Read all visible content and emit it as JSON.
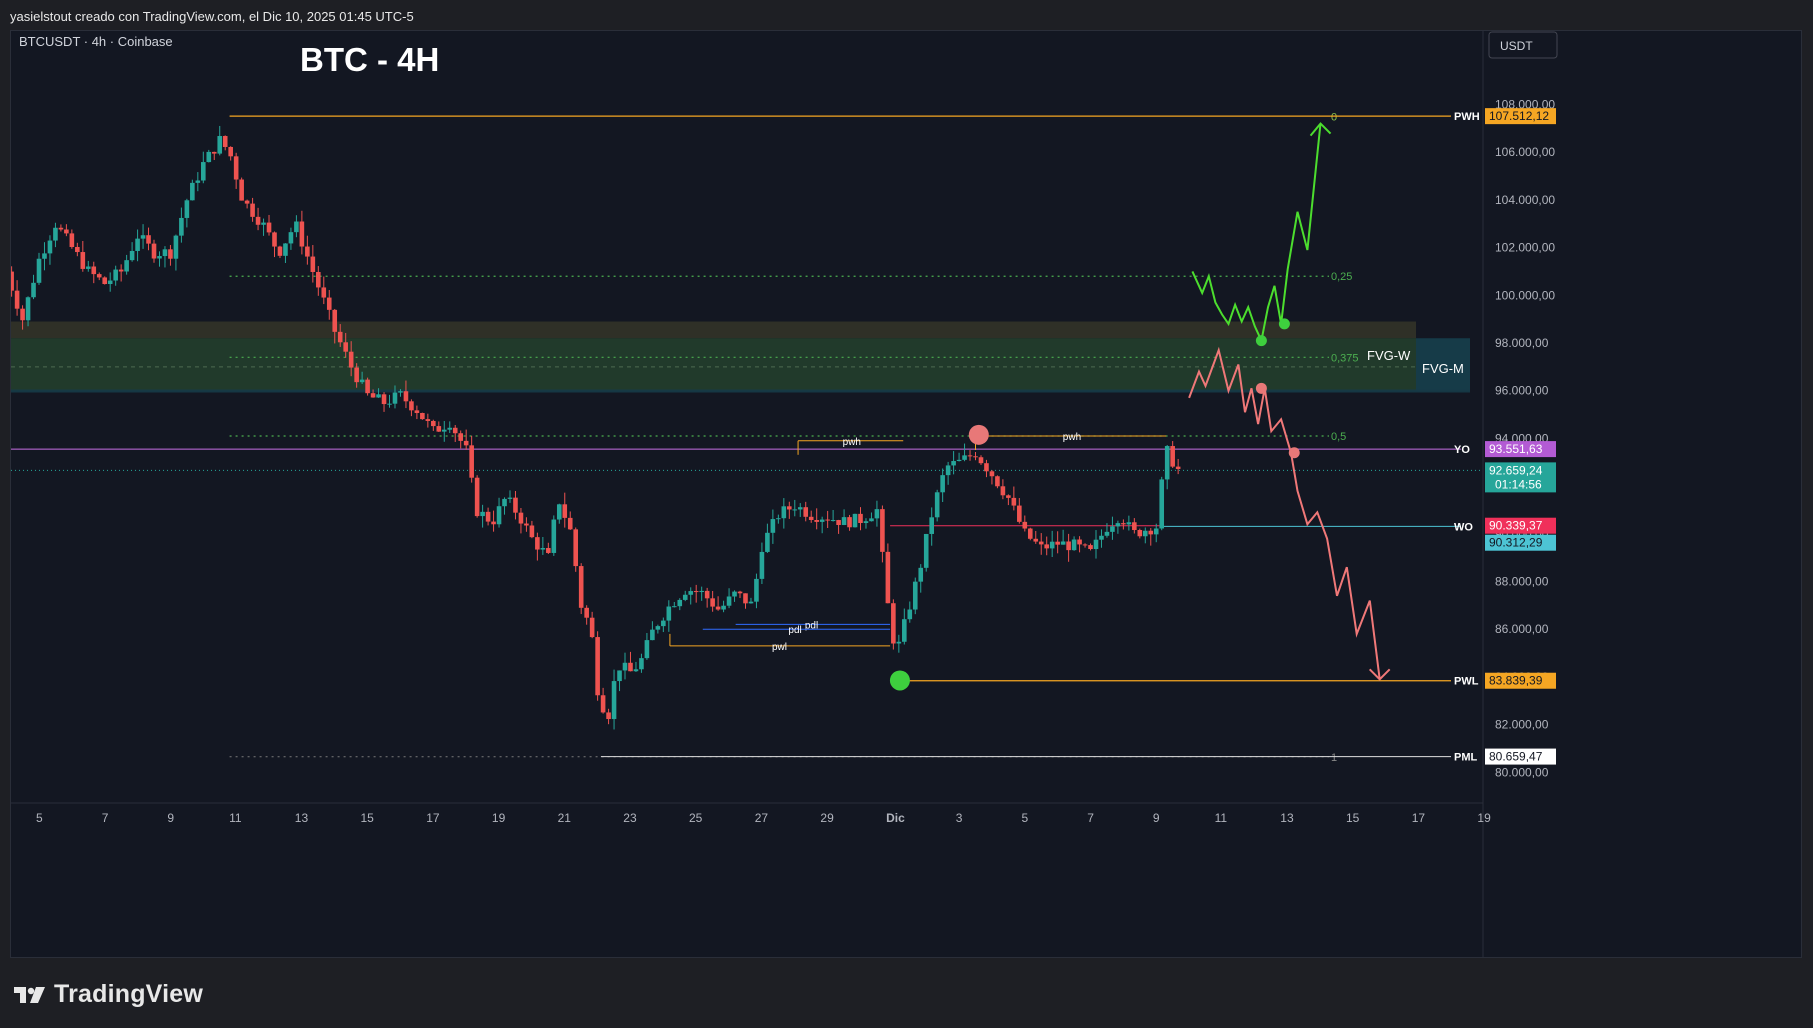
{
  "header": {
    "credit": "yasielstout creado con TradingView.com, el Dic 10, 2025 01:45 UTC-5"
  },
  "footer": {
    "brand": "TradingView"
  },
  "colors": {
    "up": "#26a69a",
    "down": "#ef5350",
    "orange": "#f5a623",
    "green_projection": "#4cde2e",
    "red_projection": "#f07878",
    "fvg_m": "#163b48",
    "fvg_w": "#25412d",
    "fvg_top": "#3a3a2a"
  },
  "chart_data": {
    "type": "candlestick",
    "symbol_line": "BTCUSDT · 4h · Coinbase",
    "title": "BTC - 4H",
    "currency": "USDT",
    "ylim": [
      78500,
      109000
    ],
    "y_ticks": [
      "108.000,00",
      "106.000,00",
      "104.000,00",
      "102.000,00",
      "100.000,00",
      "98.000,00",
      "96.000,00",
      "94.000,00",
      "92.000,00",
      "90.000,00",
      "88.000,00",
      "86.000,00",
      "84.000,00",
      "82.000,00",
      "80.000,00"
    ],
    "y_tick_values": [
      108000,
      106000,
      104000,
      102000,
      100000,
      98000,
      96000,
      94000,
      92000,
      90000,
      88000,
      86000,
      84000,
      82000,
      80000
    ],
    "x_ticks": [
      "5",
      "7",
      "9",
      "11",
      "13",
      "15",
      "17",
      "19",
      "21",
      "23",
      "25",
      "27",
      "29",
      "Dic",
      "3",
      "5",
      "7",
      "9",
      "11",
      "13",
      "15",
      "17",
      "19"
    ],
    "x_range_days": [
      4,
      35
    ],
    "price_path": [
      [
        4.0,
        101000
      ],
      [
        4.5,
        99000
      ],
      [
        5.0,
        101500
      ],
      [
        5.5,
        103000
      ],
      [
        6.0,
        102000
      ],
      [
        6.5,
        101000
      ],
      [
        7.0,
        100500
      ],
      [
        7.5,
        101000
      ],
      [
        8.0,
        102500
      ],
      [
        8.5,
        101800
      ],
      [
        9.0,
        101800
      ],
      [
        9.5,
        104000
      ],
      [
        10.0,
        105500
      ],
      [
        10.5,
        106500
      ],
      [
        10.8,
        106000
      ],
      [
        11.2,
        104000
      ],
      [
        11.8,
        103000
      ],
      [
        12.3,
        101800
      ],
      [
        12.8,
        103000
      ],
      [
        13.2,
        101500
      ],
      [
        13.6,
        100000
      ],
      [
        14.0,
        98500
      ],
      [
        14.5,
        97000
      ],
      [
        15.0,
        95800
      ],
      [
        15.5,
        95500
      ],
      [
        16.0,
        95800
      ],
      [
        16.5,
        95200
      ],
      [
        17.0,
        94300
      ],
      [
        17.5,
        94700
      ],
      [
        18.0,
        93500
      ],
      [
        18.3,
        91000
      ],
      [
        18.8,
        90500
      ],
      [
        19.2,
        91500
      ],
      [
        19.6,
        90800
      ],
      [
        20.0,
        89800
      ],
      [
        20.5,
        89000
      ],
      [
        20.8,
        91500
      ],
      [
        21.2,
        90000
      ],
      [
        21.5,
        87000
      ],
      [
        21.8,
        86000
      ],
      [
        22.0,
        83500
      ],
      [
        22.3,
        82200
      ],
      [
        22.6,
        84500
      ],
      [
        23.0,
        84200
      ],
      [
        23.3,
        84600
      ],
      [
        23.7,
        86000
      ],
      [
        24.2,
        87000
      ],
      [
        24.7,
        87700
      ],
      [
        25.2,
        87500
      ],
      [
        25.7,
        86800
      ],
      [
        26.2,
        87500
      ],
      [
        26.7,
        87000
      ],
      [
        27.0,
        89500
      ],
      [
        27.5,
        90800
      ],
      [
        28.0,
        91200
      ],
      [
        28.5,
        90800
      ],
      [
        29.0,
        90700
      ],
      [
        29.5,
        90500
      ],
      [
        30.0,
        90600
      ],
      [
        30.5,
        91000
      ],
      [
        30.9,
        86200
      ],
      [
        31.1,
        85000
      ],
      [
        31.4,
        86500
      ],
      [
        31.8,
        88500
      ],
      [
        32.2,
        91000
      ],
      [
        32.6,
        92800
      ],
      [
        33.0,
        93000
      ],
      [
        33.5,
        93400
      ],
      [
        34.0,
        92500
      ],
      [
        34.5,
        91500
      ],
      [
        35.0,
        90000
      ],
      [
        35.5,
        89400
      ],
      [
        36.0,
        89600
      ],
      [
        36.5,
        89500
      ],
      [
        37.0,
        89200
      ],
      [
        37.5,
        90300
      ],
      [
        37.9,
        90800
      ],
      [
        38.3,
        90000
      ],
      [
        38.7,
        90200
      ],
      [
        39.0,
        90300
      ],
      [
        39.3,
        93500
      ],
      [
        39.7,
        92600
      ]
    ],
    "levels": [
      {
        "name": "PWH",
        "value": 107512.12,
        "label": "107.512,12",
        "color": "#f5a623",
        "style": "solid",
        "from_day": 10.8
      },
      {
        "name": "YO",
        "value": 93551.63,
        "label": "93.551,63",
        "color": "#c770e6",
        "style": "solid",
        "from_day": 4.0
      },
      {
        "name": "WO",
        "value": 90312.29,
        "label": "90.312,29",
        "color": "#4dc4d4",
        "style": "solid",
        "from_day": 39.0
      },
      {
        "name": "PWL",
        "value": 83839.39,
        "label": "83.839,39",
        "color": "#f5a623",
        "style": "solid",
        "from_day": 31.2
      },
      {
        "name": "PML",
        "value": 80659.47,
        "label": "80.659,47",
        "color": "#e0e0e0",
        "style": "solid",
        "from_day": 22.1
      }
    ],
    "price_tags": [
      {
        "value": 90339.37,
        "label": "90.339,37",
        "color": "#f0305a"
      },
      {
        "value": 92659.24,
        "label": "92.659,24",
        "sublabel": "01:14:56",
        "color": "#26a69a"
      }
    ],
    "fib_levels": [
      {
        "label": "0",
        "value": 107500
      },
      {
        "label": "0,25",
        "value": 100800
      },
      {
        "label": "0,375",
        "value": 97400
      },
      {
        "label": "0,5",
        "value": 94100
      },
      {
        "label": "1",
        "value": 80650
      }
    ],
    "zones": [
      {
        "name": "FVG-W",
        "top": 98900,
        "bottom": 96000,
        "label": "FVG-W"
      },
      {
        "name": "FVG-M",
        "top": 98200,
        "bottom": 96000,
        "label": "FVG-M"
      }
    ],
    "small_levels": [
      {
        "label": "pwh",
        "value": 93900,
        "from_day": 28.1,
        "to_day": 31.3
      },
      {
        "label": "pwh",
        "value": 94100,
        "from_day": 33.5,
        "to_day": 39.3
      },
      {
        "label": "pwl",
        "value": 85300,
        "from_day": 24.2,
        "to_day": 30.9
      },
      {
        "label": "pdl",
        "value": 86200,
        "from_day": 26.2,
        "to_day": 30.9
      },
      {
        "label": "pdl",
        "value": 86000,
        "from_day": 25.2,
        "to_day": 30.9
      }
    ],
    "projection_bull": [
      [
        40.1,
        101000
      ],
      [
        40.4,
        100100
      ],
      [
        40.6,
        100800
      ],
      [
        40.8,
        99700
      ],
      [
        41.0,
        99200
      ],
      [
        41.2,
        98800
      ],
      [
        41.4,
        99600
      ],
      [
        41.6,
        98900
      ],
      [
        41.8,
        99500
      ],
      [
        42.0,
        98700
      ],
      [
        42.2,
        98100
      ],
      [
        42.4,
        99500
      ],
      [
        42.6,
        100400
      ],
      [
        42.8,
        98800
      ],
      [
        43.0,
        101100
      ],
      [
        43.3,
        103500
      ],
      [
        43.6,
        101900
      ],
      [
        44.0,
        107200
      ]
    ],
    "projection_bear": [
      [
        40.0,
        95700
      ],
      [
        40.3,
        96800
      ],
      [
        40.5,
        96200
      ],
      [
        40.9,
        97700
      ],
      [
        41.2,
        96000
      ],
      [
        41.5,
        97100
      ],
      [
        41.7,
        95100
      ],
      [
        41.9,
        96100
      ],
      [
        42.1,
        94600
      ],
      [
        42.3,
        96100
      ],
      [
        42.5,
        94300
      ],
      [
        42.8,
        94800
      ],
      [
        43.1,
        93400
      ],
      [
        43.3,
        91800
      ],
      [
        43.6,
        90400
      ],
      [
        43.9,
        90900
      ],
      [
        44.2,
        89800
      ],
      [
        44.5,
        87400
      ],
      [
        44.8,
        88600
      ],
      [
        45.1,
        85800
      ],
      [
        45.5,
        87200
      ],
      [
        45.8,
        83900
      ]
    ],
    "markers": [
      {
        "type": "circle",
        "day": 31.2,
        "value": 83850,
        "color": "#3ecf3e",
        "size": "large"
      },
      {
        "type": "circle",
        "day": 33.6,
        "value": 94150,
        "color": "#e87878",
        "size": "large"
      },
      {
        "type": "circle",
        "day": 42.2,
        "value": 98100,
        "color": "#3ecf3e",
        "size": "small"
      },
      {
        "type": "circle",
        "day": 42.9,
        "value": 98800,
        "color": "#3ecf3e",
        "size": "small"
      },
      {
        "type": "circle",
        "day": 42.2,
        "value": 96100,
        "color": "#e87878",
        "size": "small"
      },
      {
        "type": "circle",
        "day": 43.2,
        "value": 93400,
        "color": "#e87878",
        "size": "small"
      }
    ]
  }
}
